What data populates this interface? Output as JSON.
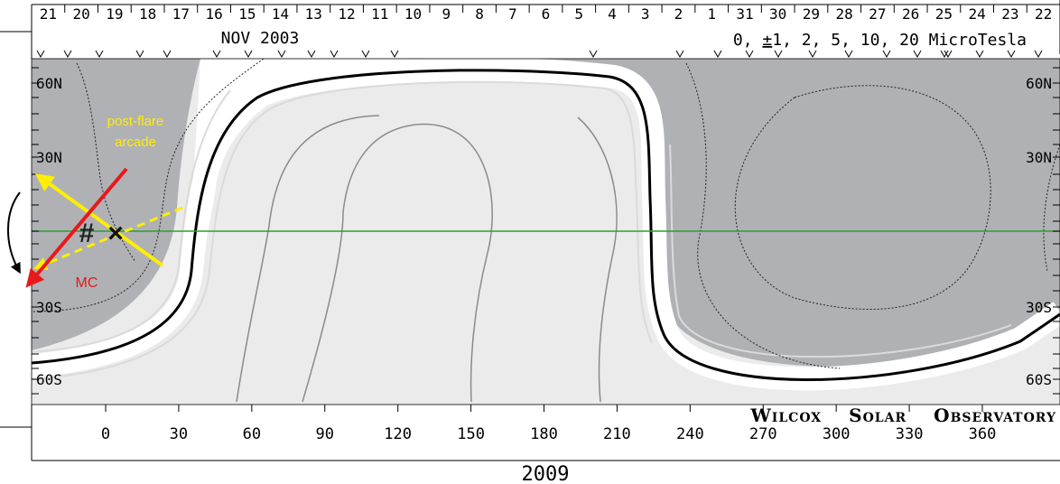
{
  "header": {
    "day_ticks": [
      "21",
      "20",
      "19",
      "18",
      "17",
      "16",
      "15",
      "14",
      "13",
      "12",
      "11",
      "10",
      "9",
      "8",
      "7",
      "6",
      "5",
      "4",
      "3",
      "2",
      "1",
      "31",
      "30",
      "29",
      "28",
      "27",
      "26",
      "25",
      "24",
      "23",
      "22"
    ],
    "month_label": "NOV 2003",
    "contour_levels": {
      "part1": "0, ",
      "pm": "±",
      "part2": "1, 2, 5, 10, 20 MicroTesla"
    }
  },
  "latitude_labels": {
    "left": [
      "60N",
      "30N",
      "30S",
      "60S"
    ],
    "right": [
      "60N",
      "30N",
      "30S",
      "60S"
    ]
  },
  "longitude_labels": [
    "0",
    "30",
    "60",
    "90",
    "120",
    "150",
    "180",
    "210",
    "240",
    "270",
    "300",
    "330",
    "360"
  ],
  "credit": {
    "w_cap": "W",
    "w_rest": "ILCOX",
    "s_cap": "S",
    "s_rest": "OLAR",
    "o_cap": "O",
    "o_rest": "BSERVATORY"
  },
  "year_label": "2009",
  "annotations": {
    "arcade": [
      "post-flare",
      "arcade"
    ],
    "mc": "MC",
    "hash": "#",
    "cross": "×"
  },
  "colors": {
    "negative_polarity": "#b0b1b5",
    "positive_polarity": "#ebebeb",
    "neutral_line": "#000000",
    "equator": "#2ca02c",
    "arcade_arrow": "#ffee00",
    "mc_arrow": "#e8191b"
  }
}
